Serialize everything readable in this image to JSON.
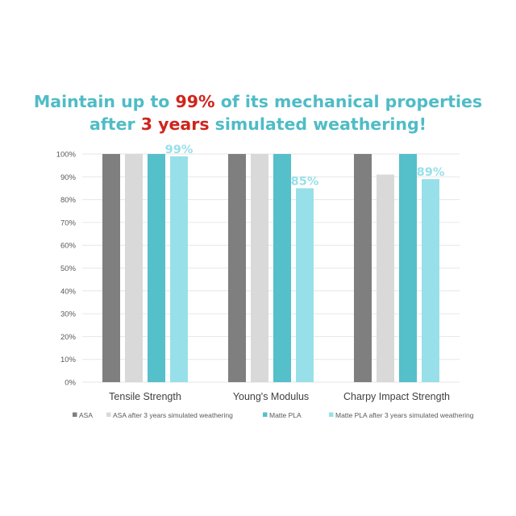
{
  "title": {
    "line1": [
      {
        "text": "Maintain up to ",
        "hl": false
      },
      {
        "text": "99%",
        "hl": true
      },
      {
        "text": " of its mechanical properties",
        "hl": false
      }
    ],
    "line2": [
      {
        "text": "after ",
        "hl": false
      },
      {
        "text": "3 years",
        "hl": true
      },
      {
        "text": " simulated weathering!",
        "hl": false
      }
    ]
  },
  "colors": {
    "title": "#4fbcc6",
    "highlight": "#d0241c",
    "series": [
      "#7f7f7f",
      "#d9d9d9",
      "#55bfca",
      "#98e0e9"
    ],
    "value_label": "#98e0e9",
    "grid": "#e6e6e6",
    "tick_text": "#595959"
  },
  "chart_data": {
    "type": "bar",
    "categories": [
      "Tensile Strength",
      "Young's Modulus",
      "Charpy Impact Strength"
    ],
    "series": [
      {
        "name": "ASA",
        "values": [
          100,
          100,
          100
        ]
      },
      {
        "name": "ASA after 3 years simulated weathering",
        "values": [
          100,
          100,
          91
        ]
      },
      {
        "name": "Matte PLA",
        "values": [
          100,
          100,
          100
        ]
      },
      {
        "name": "Matte PLA after 3 years simulated weathering",
        "values": [
          99,
          85,
          89
        ]
      }
    ],
    "data_labels": [
      {
        "series": 3,
        "category": 0,
        "text": "99%"
      },
      {
        "series": 3,
        "category": 1,
        "text": "85%"
      },
      {
        "series": 3,
        "category": 2,
        "text": "89%"
      }
    ],
    "yticks": [
      "0%",
      "10%",
      "20%",
      "30%",
      "40%",
      "50%",
      "60%",
      "70%",
      "80%",
      "90%",
      "100%"
    ],
    "ylim": [
      0,
      100
    ],
    "grid": true,
    "legend_position": "bottom"
  }
}
